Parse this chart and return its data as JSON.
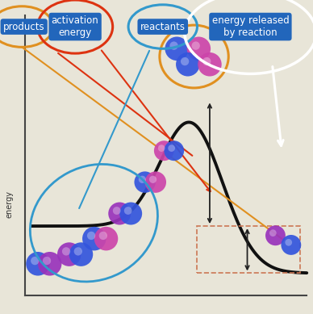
{
  "bg_color": "#dbd8cc",
  "bg_top_color": "#e8e5d8",
  "labels": {
    "products": "products",
    "activation_energy": "activation\nenergy",
    "reactants": "reactants",
    "energy_released": "energy released\nby reaction"
  },
  "label_bg_color": "#2266bb",
  "label_text_color": "white",
  "label_fontsize": 8.5,
  "curve_color": "#111111",
  "curve_linewidth": 2.8,
  "orange_color": "#e09020",
  "red_color": "#dd3311",
  "blue_color": "#3399cc",
  "white_color": "#ffffff",
  "dashed_color": "#cc7755",
  "arrow_color": "#222222",
  "molecule_blue": "#3355cc",
  "molecule_purple": "#9933aa",
  "molecule_pink": "#cc44aa"
}
